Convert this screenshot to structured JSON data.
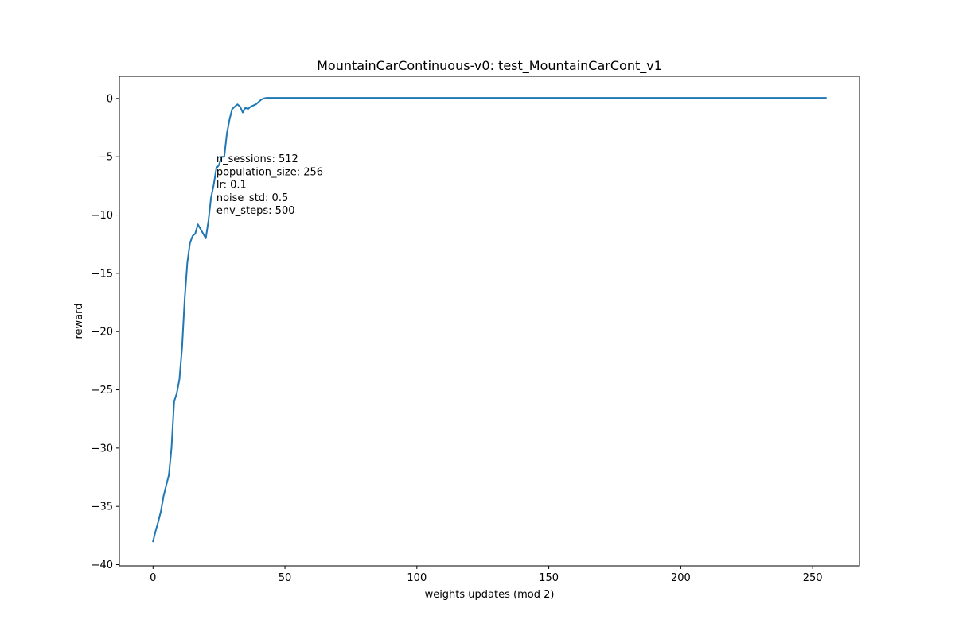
{
  "chart_data": {
    "type": "line",
    "title": "MountainCarContinuous-v0: test_MountainCarCont_v1",
    "xlabel": "weights updates (mod 2)",
    "ylabel": "reward",
    "xlim": [
      -12.75,
      267.75
    ],
    "ylim": [
      -40.1,
      1.9
    ],
    "xticks": [
      0,
      50,
      100,
      150,
      200,
      250
    ],
    "yticks": [
      -40,
      -35,
      -30,
      -25,
      -20,
      -15,
      -10,
      -5,
      0
    ],
    "xtick_labels": [
      "0",
      "50",
      "100",
      "150",
      "200",
      "250"
    ],
    "ytick_labels": [
      "−40",
      "−35",
      "−30",
      "−25",
      "−20",
      "−15",
      "−10",
      "−5",
      "0"
    ],
    "grid": false,
    "line_color": "#1f77b4",
    "annotation": {
      "x": 24,
      "lines": [
        "n_sessions: 512",
        "population_size: 256",
        "lr: 0.1",
        "noise_std: 0.5",
        "env_steps: 500"
      ]
    },
    "series": [
      {
        "x": [
          0,
          1,
          2,
          3,
          4,
          5,
          6,
          7,
          8,
          9,
          10,
          11,
          12,
          13,
          14,
          15,
          16,
          17,
          18,
          19,
          20,
          21,
          22,
          23,
          24,
          25,
          26,
          27,
          28,
          29,
          30,
          31,
          32,
          33,
          34,
          35,
          36,
          37,
          38,
          39,
          40,
          41,
          42,
          43,
          44,
          45,
          50,
          100,
          150,
          200,
          255
        ],
        "y": [
          -38.0,
          -37.1,
          -36.3,
          -35.4,
          -34.1,
          -33.2,
          -32.3,
          -30.0,
          -26.0,
          -25.3,
          -24.1,
          -21.4,
          -17.2,
          -14.1,
          -12.4,
          -11.8,
          -11.6,
          -10.8,
          -11.2,
          -11.6,
          -12.0,
          -10.5,
          -8.5,
          -7.4,
          -6.0,
          -5.7,
          -5.0,
          -5.0,
          -3.0,
          -1.8,
          -0.9,
          -0.7,
          -0.5,
          -0.7,
          -1.2,
          -0.8,
          -0.9,
          -0.7,
          -0.6,
          -0.5,
          -0.3,
          -0.1,
          0.0,
          0.05,
          0.05,
          0.05,
          0.05,
          0.05,
          0.05,
          0.05,
          0.05
        ]
      }
    ]
  }
}
